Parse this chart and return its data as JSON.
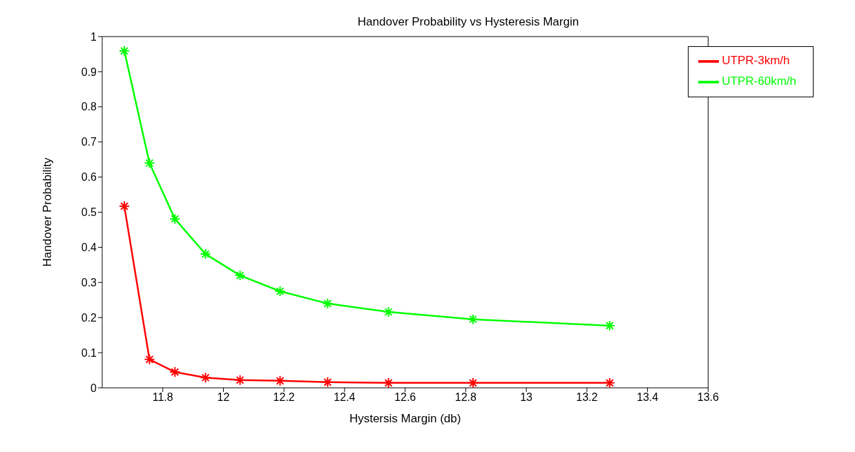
{
  "chart_data": {
    "type": "line",
    "title": "Handover Probability vs Hysteresis Margin",
    "xlabel": "Hystersis Margin (db)",
    "ylabel": "Handover Probability",
    "x": [
      11.673,
      11.756,
      11.84,
      11.941,
      12.055,
      12.187,
      12.344,
      12.545,
      12.824,
      13.275
    ],
    "series": [
      {
        "name": "UTPR-3km/h",
        "color": "#ff0000",
        "values": [
          0.517,
          0.081,
          0.045,
          0.029,
          0.022,
          0.02,
          0.016,
          0.014,
          0.014,
          0.014
        ]
      },
      {
        "name": "UTPR-60km/h",
        "color": "#00ff00",
        "values": [
          0.959,
          0.64,
          0.481,
          0.381,
          0.32,
          0.275,
          0.24,
          0.216,
          0.195,
          0.177
        ]
      }
    ],
    "xlim": [
      11.6,
      13.6
    ],
    "xticks": [
      11.8,
      12,
      12.2,
      12.4,
      12.6,
      12.8,
      13,
      13.2,
      13.4,
      13.6
    ],
    "ylim": [
      0,
      1
    ],
    "yticks": [
      0,
      0.1,
      0.2,
      0.3,
      0.4,
      0.5,
      0.6,
      0.7,
      0.8,
      0.9,
      1
    ],
    "grid": false,
    "legend": "top right",
    "marker": "cross",
    "line_style": "solid"
  }
}
